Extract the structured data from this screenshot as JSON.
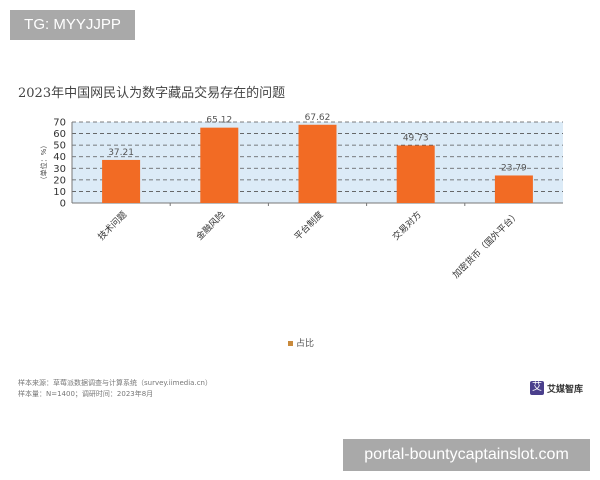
{
  "watermark_top": "TG: MYYJJPP",
  "watermark_bottom": "portal-bountycaptainslot.com",
  "chart_data": {
    "type": "bar",
    "title": "2023年中国网民认为数字藏品交易存在的问题",
    "ylabel": "（单位：%）",
    "xlabel": "",
    "categories": [
      "技术问题",
      "金融风险",
      "平台制度",
      "交易对方",
      "加密货币（国外平台）"
    ],
    "values": [
      37.21,
      65.12,
      67.62,
      49.73,
      23.79
    ],
    "value_labels": [
      "37.21",
      "65.12",
      "67.62",
      "49.73",
      "23.79"
    ],
    "yticks": [
      "0",
      "10",
      "20",
      "30",
      "40",
      "50",
      "60",
      "70"
    ],
    "ylim": [
      0,
      70
    ],
    "grid": true,
    "legend": "bottom-center",
    "series_name": "占比",
    "bar_color": "#f26b24",
    "plot_bg": "#dcebf7"
  },
  "source_line1": "样本来源：草莓派数据调查与计算系统（survey.iimedia.cn）",
  "source_line2": "样本量：N=1400；调研时间：2023年8月",
  "logo_text": "艾媒智库"
}
